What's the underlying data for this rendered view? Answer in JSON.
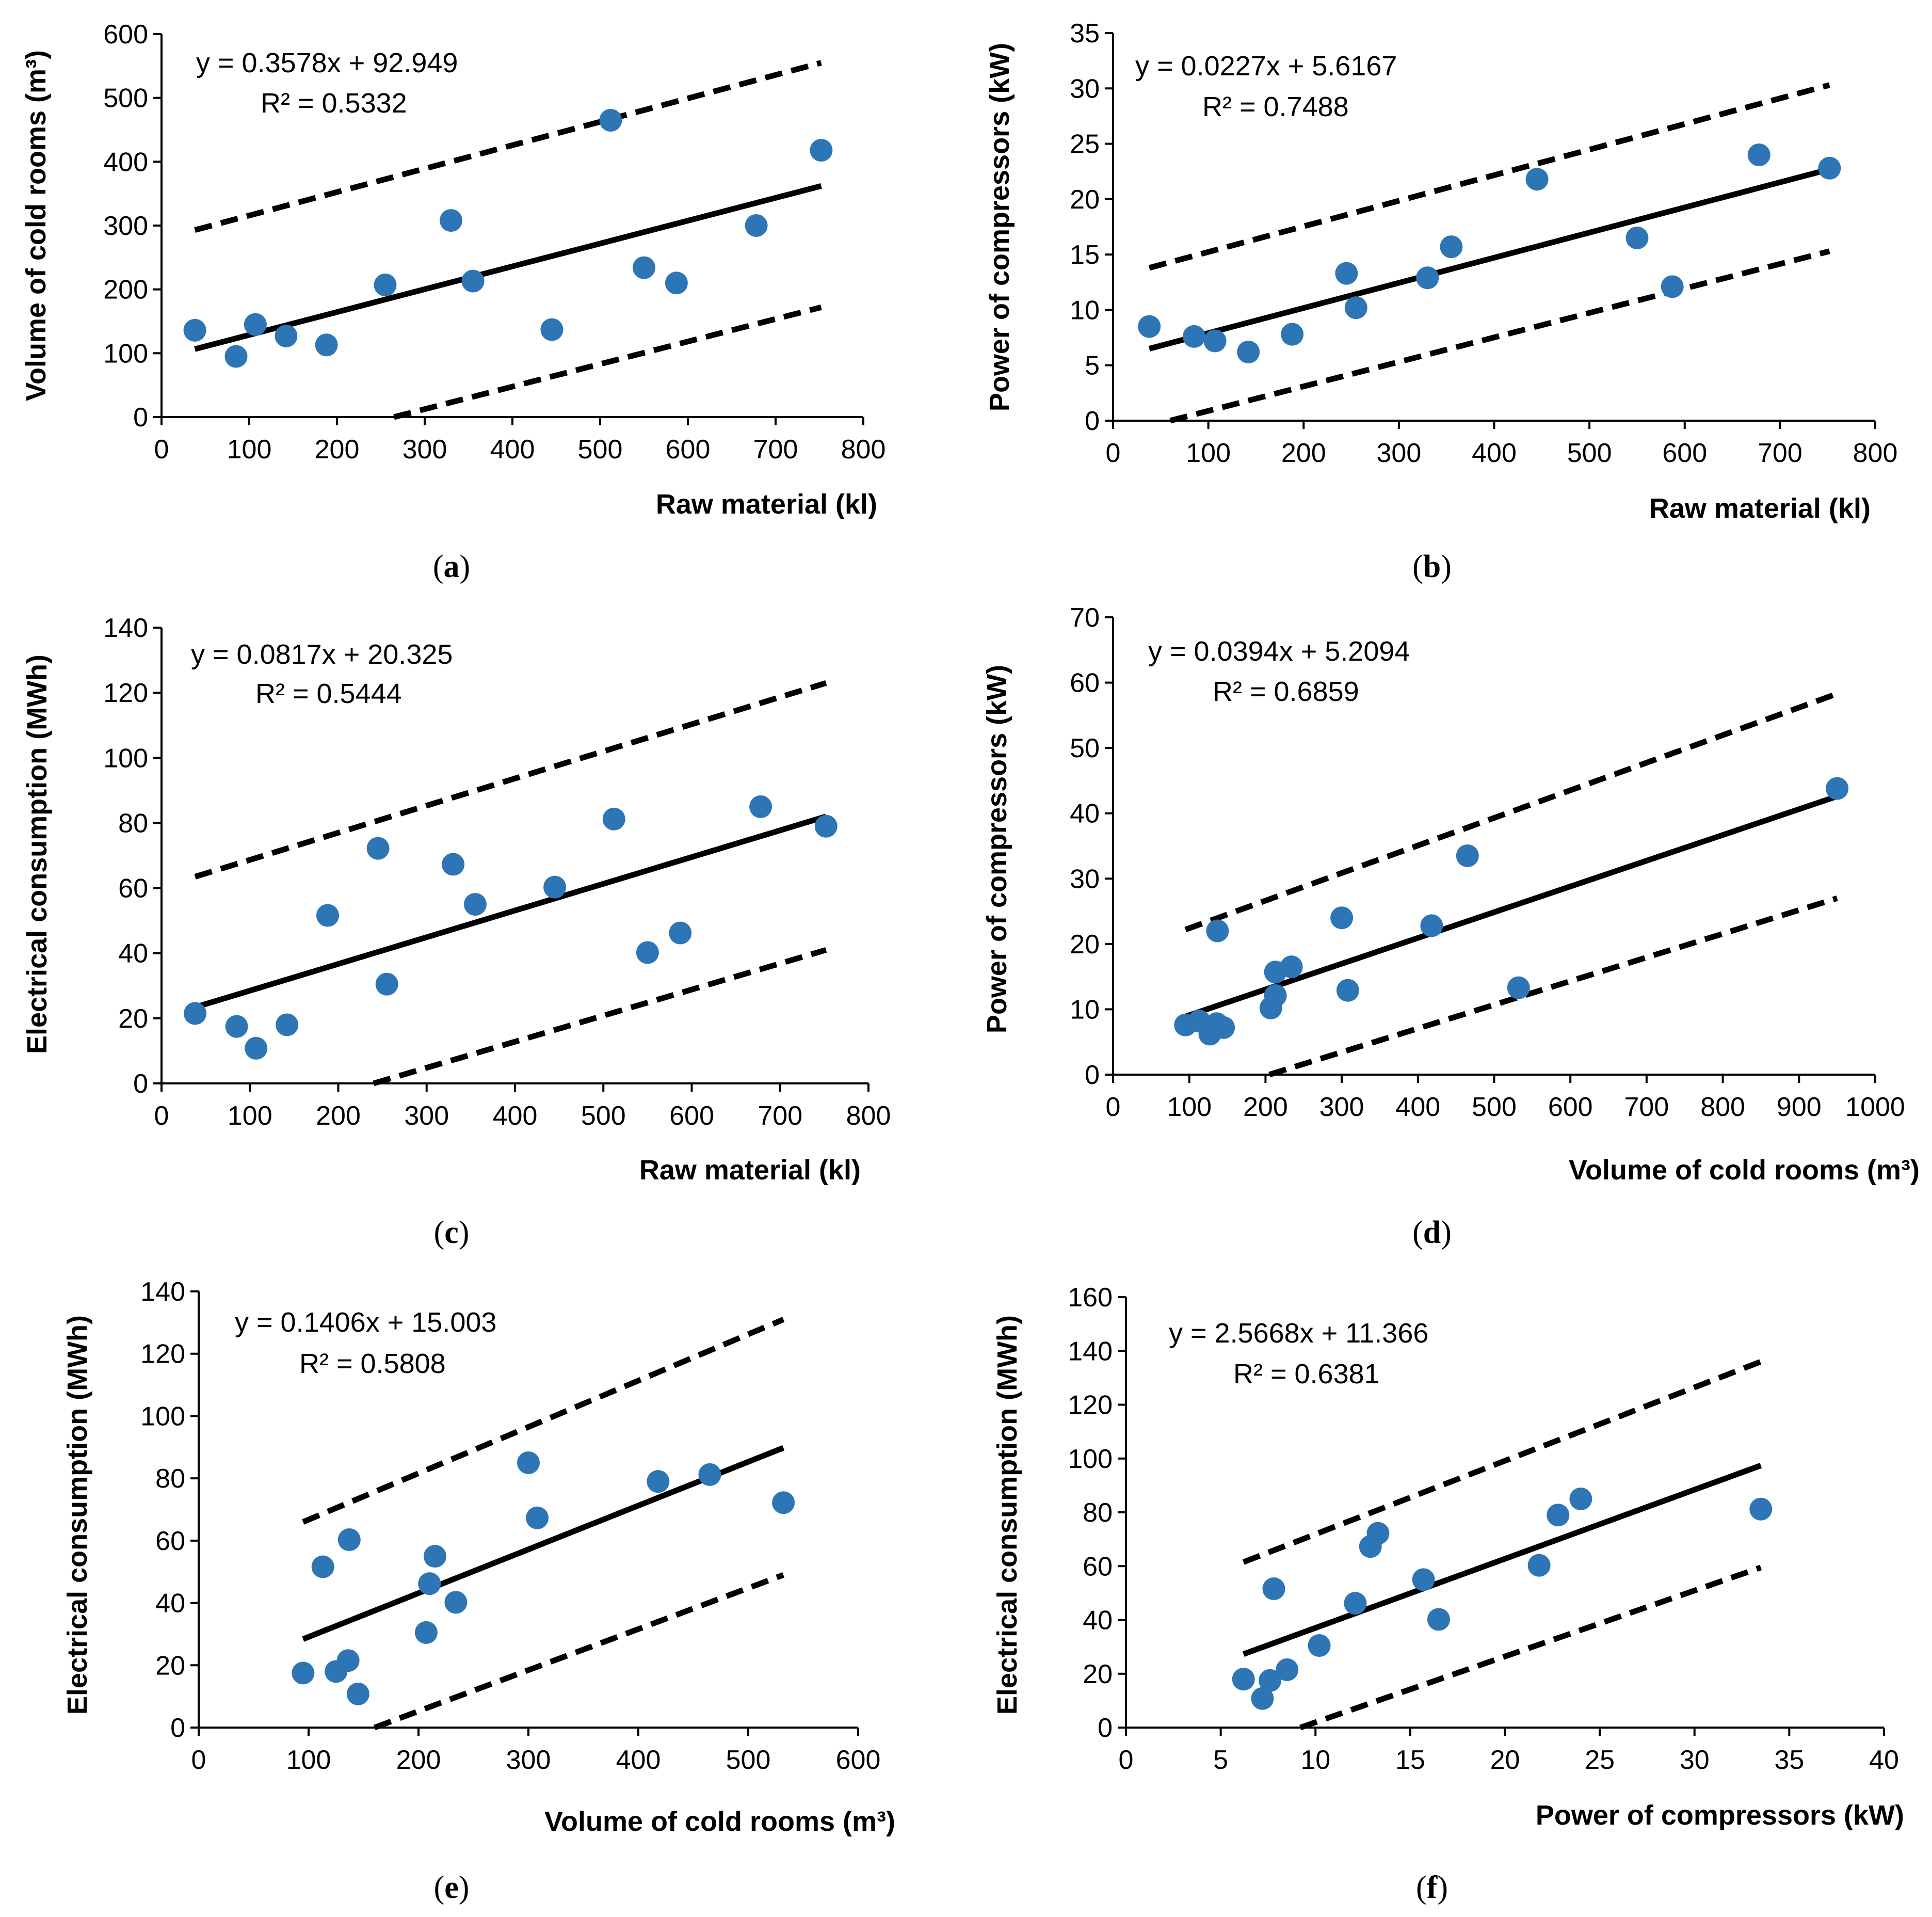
{
  "point_color": "#2E75B6",
  "line_color": "#000000",
  "chart_data": [
    {
      "id": "a",
      "type": "scatter",
      "panel_label": "a",
      "xlabel": "Raw material (kl)",
      "ylabel": "Volume of cold rooms (m³)",
      "xlim": [
        0,
        800
      ],
      "ylim": [
        0,
        600
      ],
      "xticks": [
        0,
        100,
        200,
        300,
        400,
        500,
        600,
        700,
        800
      ],
      "yticks": [
        0,
        100,
        200,
        300,
        400,
        500,
        600
      ],
      "equation": "y = 0.3578x + 92.949",
      "r2": "R² = 0.5332",
      "points": [
        [
          38,
          136
        ],
        [
          85,
          95
        ],
        [
          107,
          145
        ],
        [
          142,
          127
        ],
        [
          188,
          113
        ],
        [
          255,
          207
        ],
        [
          330,
          308
        ],
        [
          355,
          213
        ],
        [
          445,
          137
        ],
        [
          512,
          465
        ],
        [
          550,
          234
        ],
        [
          587,
          210
        ],
        [
          678,
          300
        ],
        [
          752,
          418
        ]
      ],
      "fit": [
        [
          38,
          106.5
        ],
        [
          752,
          362
        ]
      ],
      "upper": [
        [
          38,
          293
        ],
        [
          752,
          555
        ]
      ],
      "lower": [
        [
          265,
          0
        ],
        [
          752,
          172
        ]
      ]
    },
    {
      "id": "b",
      "type": "scatter",
      "panel_label": "b",
      "xlabel": "Raw material (kl)",
      "ylabel": "Power of compressors (kW)",
      "xlim": [
        0,
        800
      ],
      "ylim": [
        0,
        35
      ],
      "xticks": [
        0,
        100,
        200,
        300,
        400,
        500,
        600,
        700,
        800
      ],
      "yticks": [
        0,
        5,
        10,
        15,
        20,
        25,
        30,
        35
      ],
      "equation": "y = 0.0227x + 5.6167",
      "r2": "R² = 0.7488",
      "points": [
        [
          38,
          8.5
        ],
        [
          85,
          7.6
        ],
        [
          107,
          7.2
        ],
        [
          142,
          6.2
        ],
        [
          188,
          7.8
        ],
        [
          245,
          13.3
        ],
        [
          255,
          10.2
        ],
        [
          330,
          12.9
        ],
        [
          355,
          15.7
        ],
        [
          445,
          21.8
        ],
        [
          550,
          16.5
        ],
        [
          587,
          12.1
        ],
        [
          678,
          24
        ],
        [
          752,
          22.8
        ]
      ],
      "fit": [
        [
          38,
          6.5
        ],
        [
          752,
          22.7
        ]
      ],
      "upper": [
        [
          38,
          13.8
        ],
        [
          752,
          30.3
        ]
      ],
      "lower": [
        [
          60,
          0
        ],
        [
          752,
          15.3
        ]
      ]
    },
    {
      "id": "c",
      "type": "scatter",
      "panel_label": "c",
      "xlabel": "Raw material (kl)",
      "ylabel": "Electrical consumption (MWh)",
      "xlim": [
        0,
        800
      ],
      "ylim": [
        0,
        140
      ],
      "xticks": [
        0,
        100,
        200,
        300,
        400,
        500,
        600,
        700,
        800
      ],
      "yticks": [
        0,
        20,
        40,
        60,
        80,
        100,
        120,
        140
      ],
      "equation": "y = 0.0817x + 20.325",
      "r2": "R² = 0.5444",
      "points": [
        [
          38,
          21.5
        ],
        [
          85,
          17.5
        ],
        [
          107,
          10.8
        ],
        [
          142,
          18
        ],
        [
          188,
          51.6
        ],
        [
          245,
          72.2
        ],
        [
          255,
          30.5
        ],
        [
          330,
          67.3
        ],
        [
          355,
          55
        ],
        [
          445,
          60.3
        ],
        [
          512,
          81.2
        ],
        [
          550,
          40.2
        ],
        [
          587,
          46.2
        ],
        [
          678,
          85
        ],
        [
          752,
          79
        ]
      ],
      "fit": [
        [
          38,
          23.4
        ],
        [
          752,
          82
        ]
      ],
      "upper": [
        [
          38,
          63.5
        ],
        [
          752,
          123
        ]
      ],
      "lower": [
        [
          240,
          0
        ],
        [
          752,
          41
        ]
      ]
    },
    {
      "id": "d",
      "type": "scatter",
      "panel_label": "d",
      "xlabel": "Volume of cold rooms (m³)",
      "ylabel": "Power of compressors (kW)",
      "xlim": [
        0,
        1000
      ],
      "ylim": [
        0,
        70
      ],
      "xticks": [
        0,
        100,
        200,
        300,
        400,
        500,
        600,
        700,
        800,
        900,
        1000
      ],
      "yticks": [
        0,
        10,
        20,
        30,
        40,
        50,
        60,
        70
      ],
      "equation": "y = 0.0394x + 5.2094",
      "r2": "R² = 0.6859",
      "points": [
        [
          95,
          7.6
        ],
        [
          113,
          8.2
        ],
        [
          127,
          6.2
        ],
        [
          136,
          7.8
        ],
        [
          137,
          22
        ],
        [
          145,
          7.2
        ],
        [
          207,
          10.2
        ],
        [
          213,
          12.1
        ],
        [
          213,
          15.7
        ],
        [
          234,
          16.5
        ],
        [
          300,
          24
        ],
        [
          308,
          12.9
        ],
        [
          418,
          22.8
        ],
        [
          465,
          33.5
        ],
        [
          532,
          13.3
        ],
        [
          950,
          43.8
        ]
      ],
      "fit": [
        [
          95,
          8.9
        ],
        [
          950,
          42.6
        ]
      ],
      "upper": [
        [
          95,
          22.2
        ],
        [
          950,
          58.3
        ]
      ],
      "lower": [
        [
          205,
          0
        ],
        [
          950,
          27
        ]
      ]
    },
    {
      "id": "e",
      "type": "scatter",
      "panel_label": "e",
      "xlabel": "Volume of cold rooms (m³)",
      "ylabel": "Electrical consumption (MWh)",
      "xlim": [
        0,
        600
      ],
      "ylim": [
        0,
        140
      ],
      "xticks": [
        0,
        100,
        200,
        300,
        400,
        500,
        600
      ],
      "yticks": [
        0,
        20,
        40,
        60,
        80,
        100,
        120,
        140
      ],
      "equation": "y = 0.1406x + 15.003",
      "r2": "R² = 0.5808",
      "points": [
        [
          95,
          17.5
        ],
        [
          113,
          51.6
        ],
        [
          125,
          18
        ],
        [
          136,
          21.5
        ],
        [
          137,
          60.3
        ],
        [
          145,
          10.8
        ],
        [
          207,
          30.5
        ],
        [
          210,
          46.2
        ],
        [
          215,
          55
        ],
        [
          234,
          40.2
        ],
        [
          300,
          85
        ],
        [
          308,
          67.3
        ],
        [
          418,
          79
        ],
        [
          465,
          81.2
        ],
        [
          532,
          72.2
        ]
      ],
      "fit": [
        [
          95,
          28.4
        ],
        [
          532,
          89.8
        ]
      ],
      "upper": [
        [
          95,
          66
        ],
        [
          532,
          131
        ]
      ],
      "lower": [
        [
          160,
          0
        ],
        [
          532,
          49
        ]
      ]
    },
    {
      "id": "f",
      "type": "scatter",
      "panel_label": "f",
      "xlabel": "Power of compressors (kW)",
      "ylabel": "Electrical consumption (MWh)",
      "xlim": [
        0,
        40
      ],
      "ylim": [
        0,
        160
      ],
      "xticks": [
        0,
        5,
        10,
        15,
        20,
        25,
        30,
        35,
        40
      ],
      "yticks": [
        0,
        20,
        40,
        60,
        80,
        100,
        120,
        140,
        160
      ],
      "equation": "y = 2.5668x + 11.366",
      "r2": "R² = 0.6381",
      "points": [
        [
          6.2,
          18
        ],
        [
          7.2,
          10.8
        ],
        [
          7.6,
          17.5
        ],
        [
          7.8,
          51.6
        ],
        [
          8.5,
          21.5
        ],
        [
          10.2,
          30.5
        ],
        [
          12.1,
          46.2
        ],
        [
          12.9,
          67.3
        ],
        [
          13.3,
          72.2
        ],
        [
          15.7,
          55
        ],
        [
          16.5,
          40.2
        ],
        [
          21.8,
          60.3
        ],
        [
          22.8,
          79
        ],
        [
          24,
          85
        ],
        [
          33.5,
          81.2
        ]
      ],
      "fit": [
        [
          6.2,
          27.3
        ],
        [
          33.5,
          97.4
        ]
      ],
      "upper": [
        [
          6.2,
          61.5
        ],
        [
          33.5,
          136
        ]
      ],
      "lower": [
        [
          9.2,
          0
        ],
        [
          33.5,
          59.5
        ]
      ]
    }
  ]
}
